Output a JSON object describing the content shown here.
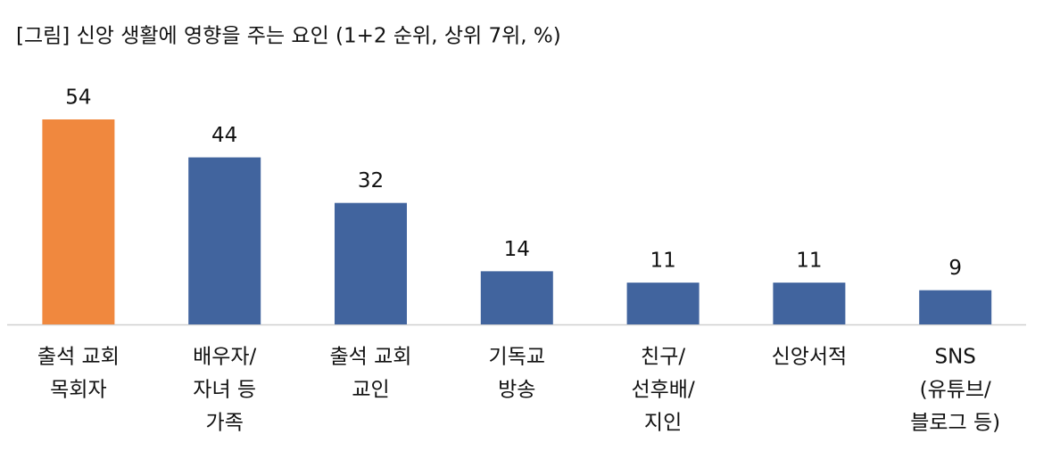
{
  "chart_data": {
    "type": "bar",
    "title": "[그림] 신앙 생활에 영향을 주는 요인 (1+2 순위, 상위 7위, %)",
    "categories": [
      [
        "출석 교회",
        "목회자"
      ],
      [
        "배우자/",
        "자녀 등",
        "가족"
      ],
      [
        "출석 교회",
        "교인"
      ],
      [
        "기독교",
        "방송"
      ],
      [
        "친구/",
        "선후배/",
        "지인"
      ],
      [
        "신앙서적"
      ],
      [
        "SNS",
        "(유튜브/",
        "블로그 등)"
      ]
    ],
    "values": [
      54,
      44,
      32,
      14,
      11,
      11,
      9
    ],
    "colors": [
      "#f0883e",
      "#41649e",
      "#41649e",
      "#41649e",
      "#41649e",
      "#41649e",
      "#41649e"
    ]
  }
}
